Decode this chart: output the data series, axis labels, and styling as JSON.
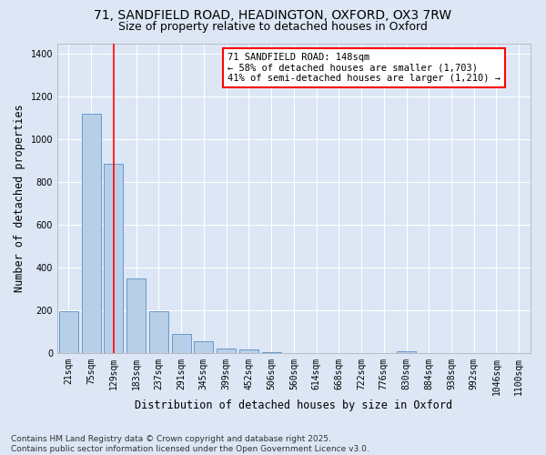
{
  "title_line1": "71, SANDFIELD ROAD, HEADINGTON, OXFORD, OX3 7RW",
  "title_line2": "Size of property relative to detached houses in Oxford",
  "xlabel": "Distribution of detached houses by size in Oxford",
  "ylabel": "Number of detached properties",
  "categories": [
    "21sqm",
    "75sqm",
    "129sqm",
    "183sqm",
    "237sqm",
    "291sqm",
    "345sqm",
    "399sqm",
    "452sqm",
    "506sqm",
    "560sqm",
    "614sqm",
    "668sqm",
    "722sqm",
    "776sqm",
    "830sqm",
    "884sqm",
    "938sqm",
    "992sqm",
    "1046sqm",
    "1100sqm"
  ],
  "values": [
    195,
    1120,
    885,
    350,
    195,
    90,
    55,
    22,
    15,
    5,
    0,
    0,
    0,
    0,
    0,
    8,
    0,
    0,
    0,
    0,
    0
  ],
  "bar_color": "#b8cfe8",
  "bar_edge_color": "#6699cc",
  "vline_x": 2.0,
  "vline_color": "red",
  "annotation_text": "71 SANDFIELD ROAD: 148sqm\n← 58% of detached houses are smaller (1,703)\n41% of semi-detached houses are larger (1,210) →",
  "annotation_box_color": "white",
  "annotation_box_edge_color": "red",
  "ylim": [
    0,
    1450
  ],
  "yticks": [
    0,
    200,
    400,
    600,
    800,
    1000,
    1200,
    1400
  ],
  "background_color": "#dce6f5",
  "plot_bg_color": "#dce6f5",
  "footer_line1": "Contains HM Land Registry data © Crown copyright and database right 2025.",
  "footer_line2": "Contains public sector information licensed under the Open Government Licence v3.0.",
  "grid_color": "#ffffff",
  "title_fontsize": 10,
  "subtitle_fontsize": 9,
  "axis_label_fontsize": 8.5,
  "tick_fontsize": 7,
  "annotation_fontsize": 7.5,
  "footer_fontsize": 6.5
}
